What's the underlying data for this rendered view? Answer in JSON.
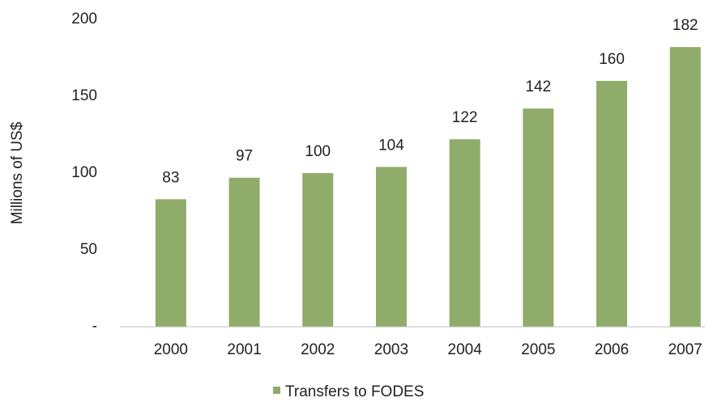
{
  "chart_data": {
    "type": "bar",
    "y_axis_label": "Millions of US$",
    "categories": [
      "2000",
      "2001",
      "2002",
      "2003",
      "2004",
      "2005",
      "2006",
      "2007"
    ],
    "series": [
      {
        "name": "Transfers to FODES",
        "color": "#8fac6a",
        "values": [
          83,
          97,
          100,
          104,
          122,
          142,
          160,
          182
        ]
      }
    ],
    "ylim": [
      0,
      200
    ],
    "yticks": [
      {
        "value": 0,
        "label": "-"
      },
      50,
      100,
      150,
      200
    ],
    "grid": false,
    "legend": "bottom"
  }
}
